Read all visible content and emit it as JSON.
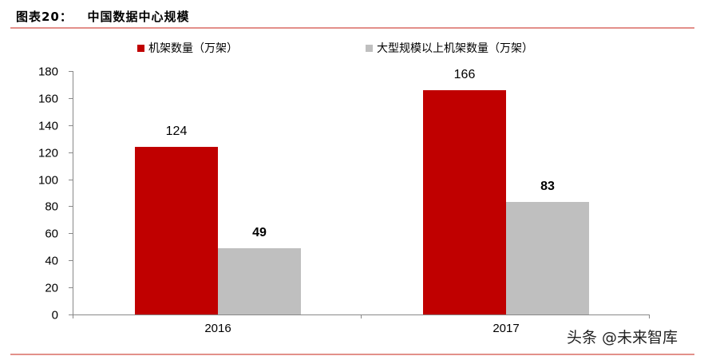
{
  "header": {
    "figure_label": "图表20：",
    "title": "中国数据中心规模"
  },
  "legend": [
    {
      "label": "机架数量（万架）",
      "color": "#c00000"
    },
    {
      "label": "大型规模以上机架数量（万架）",
      "color": "#bfbfbf"
    }
  ],
  "watermark": "头条 @未来智库",
  "colors": {
    "rule": "#e3908a",
    "series1": "#c00000",
    "series2": "#bfbfbf",
    "axis": "#888888"
  },
  "chart_data": {
    "type": "bar",
    "title": "中国数据中心规模",
    "categories": [
      "2016",
      "2017"
    ],
    "series": [
      {
        "name": "机架数量（万架）",
        "values": [
          124,
          166
        ],
        "color": "#c00000"
      },
      {
        "name": "大型规模以上机架数量（万架）",
        "values": [
          49,
          83
        ],
        "color": "#bfbfbf"
      }
    ],
    "data_labels": {
      "series1": [
        "124",
        "166"
      ],
      "series2": [
        "49",
        "83"
      ]
    },
    "xlabel": "",
    "ylabel": "",
    "ylim": [
      0,
      180
    ],
    "yticks": [
      "0",
      "20",
      "40",
      "60",
      "80",
      "100",
      "120",
      "140",
      "160",
      "180"
    ],
    "grid": false,
    "legend_position": "top"
  }
}
